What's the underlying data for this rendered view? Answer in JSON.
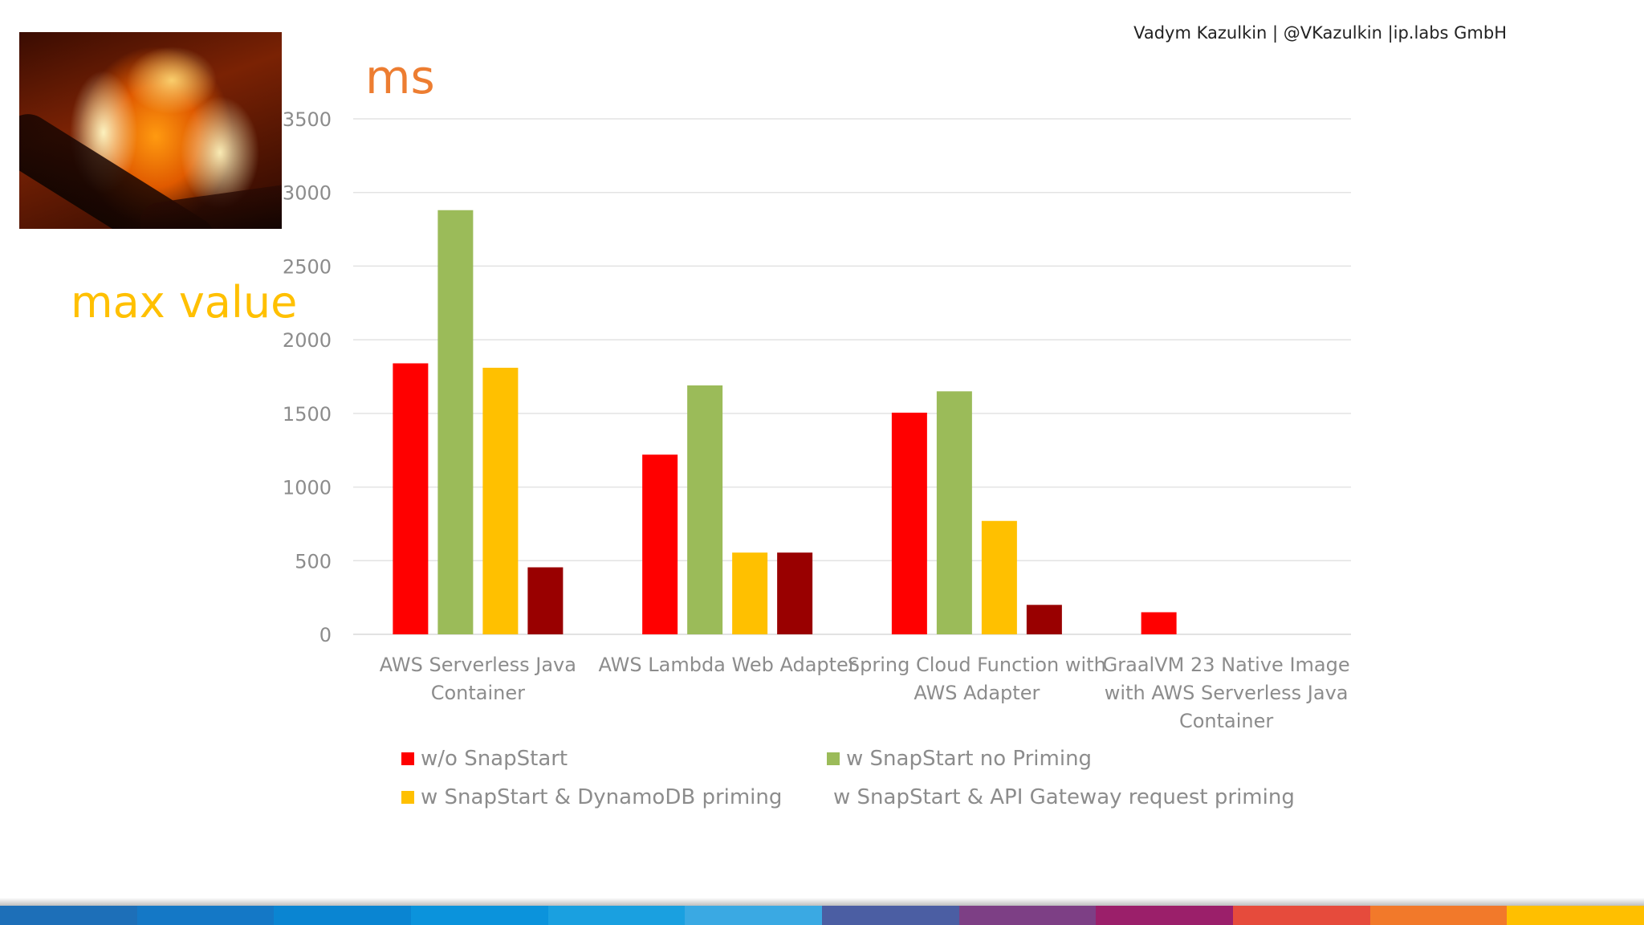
{
  "header": {
    "author": "Vadym Kazulkin | @VKazulkin |ip.labs GmbH",
    "side_title": "max value",
    "unit_title": "ms"
  },
  "photo": {
    "icon": "campfire-photo"
  },
  "colors": {
    "side_title": "#ffc000",
    "unit_title": "#ed7d31",
    "series": [
      "#ff0000",
      "#9bbb59",
      "#ffc000",
      "#990000"
    ],
    "bottom_bar": [
      "#1d6fb8",
      "#1478c6",
      "#0a85d2",
      "#0b93dc",
      "#1aa0e0",
      "#3aa9e3",
      "#4b5ea3",
      "#7d3f85",
      "#9b1f6a",
      "#e64b3c",
      "#f2792a",
      "#ffbf00"
    ]
  },
  "chart_data": {
    "type": "bar",
    "ylabel": "ms",
    "ylim": [
      0,
      3500
    ],
    "yticks": [
      "0",
      "500",
      "1000",
      "1500",
      "2000",
      "2500",
      "3000",
      "3500"
    ],
    "grid": true,
    "legend_position": "bottom",
    "categories": [
      [
        "AWS Serverless Java",
        "Container"
      ],
      [
        "AWS Lambda Web Adapter"
      ],
      [
        "Spring Cloud Function with",
        "AWS Adapter"
      ],
      [
        "GraalVM 23 Native Image",
        "with AWS Serverless Java",
        "Container"
      ]
    ],
    "series": [
      {
        "name": "w/o SnapStart",
        "values": [
          1840,
          1220,
          1505,
          150
        ]
      },
      {
        "name": "w SnapStart no Priming",
        "values": [
          2880,
          1690,
          1650,
          null
        ]
      },
      {
        "name": "w SnapStart & DynamoDB priming",
        "values": [
          1810,
          555,
          770,
          null
        ]
      },
      {
        "name": "w SnapStart & API Gateway request priming",
        "values": [
          455,
          555,
          200,
          null
        ]
      }
    ]
  }
}
